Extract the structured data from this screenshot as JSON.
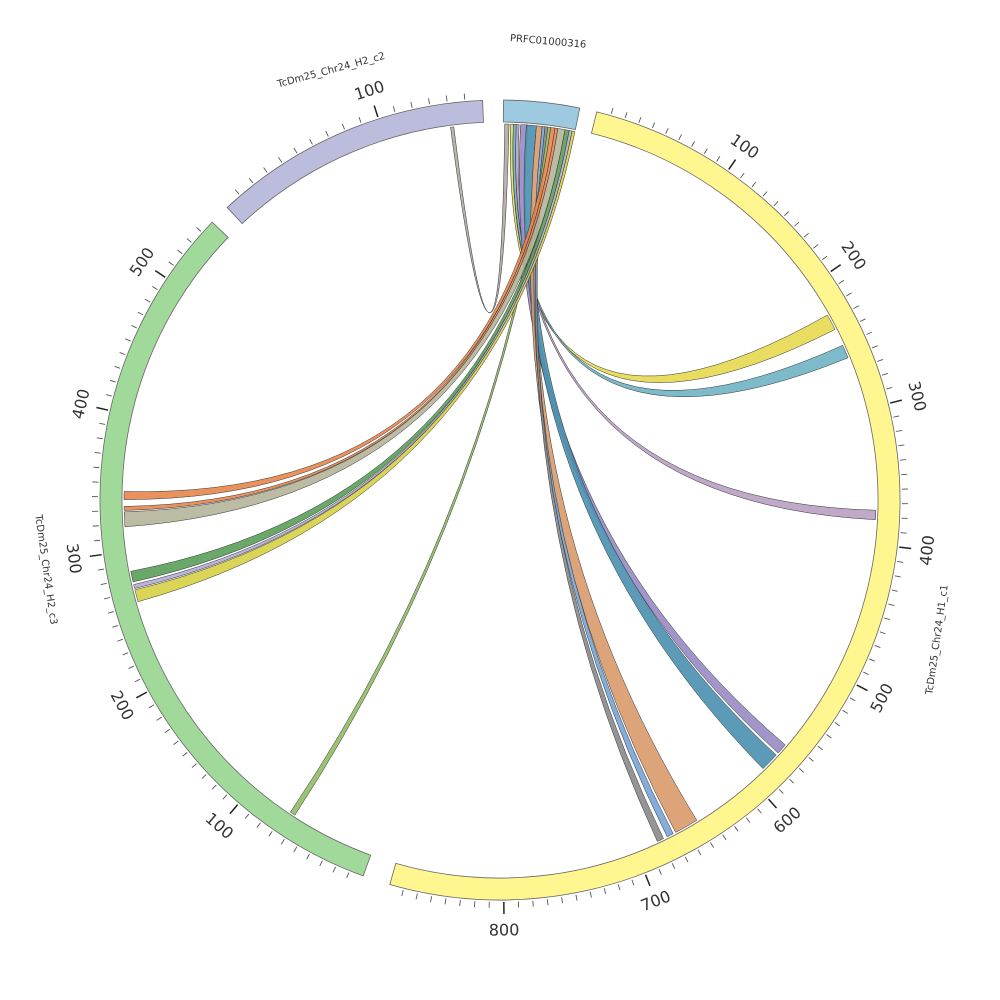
{
  "diagram": {
    "type": "circos",
    "segments": [
      {
        "id": "PRFC01000316",
        "label": "PRFC01000316",
        "length": 50,
        "color": "#9ecae1",
        "tick_labels": []
      },
      {
        "id": "c1",
        "label": "TcDm25_Chr24_H1_c1",
        "length": 880,
        "color": "#fff68f",
        "tick_labels": [
          "100",
          "200",
          "300",
          "400",
          "500",
          "600",
          "700",
          "800"
        ]
      },
      {
        "id": "c3",
        "label": "TcDm25_Chr24_H2_c3",
        "length": 550,
        "color": "#a1d99b",
        "tick_labels": [
          "100",
          "200",
          "300",
          "400",
          "500"
        ]
      },
      {
        "id": "c2",
        "label": "TcDm25_Chr24_H2_c2",
        "length": 160,
        "color": "#bcbddc",
        "tick_labels": [
          "100"
        ]
      }
    ],
    "links": [
      {
        "s": [
          1,
          4
        ],
        "t": [
          "c2",
          140,
          142
        ],
        "color": "#b0aca4"
      },
      {
        "s": [
          5,
          7
        ],
        "t": [
          "c1",
          225,
          237
        ],
        "color": "#e6d850"
      },
      {
        "s": [
          7,
          9
        ],
        "t": [
          "c1",
          250,
          260
        ],
        "color": "#6fb3c4"
      },
      {
        "s": [
          9,
          11
        ],
        "t": [
          "c1",
          375,
          382
        ],
        "color": "#b99ec2"
      },
      {
        "s": [
          12,
          17
        ],
        "t": [
          "c1",
          564,
          572
        ],
        "color": "#9889c4"
      },
      {
        "s": [
          16,
          23
        ],
        "t": [
          "c1",
          574,
          588
        ],
        "color": "#4a90b0"
      },
      {
        "s": [
          23,
          27
        ],
        "t": [
          "c1",
          650,
          668
        ],
        "color": "#d99a6a"
      },
      {
        "s": [
          27,
          29
        ],
        "t": [
          "c1",
          670,
          675
        ],
        "color": "#75a4d6"
      },
      {
        "s": [
          29,
          31
        ],
        "t": [
          "c1",
          678,
          683
        ],
        "color": "#8a8a8a"
      },
      {
        "s": [
          31,
          33
        ],
        "t": [
          "c3",
          63,
          67
        ],
        "color": "#8fbc63"
      },
      {
        "s": [
          33,
          36
        ],
        "t": [
          "c3",
          338,
          344
        ],
        "color": "#e8864d"
      },
      {
        "s": [
          36,
          38
        ],
        "t": [
          "c3",
          330,
          333
        ],
        "color": "#e8864d"
      },
      {
        "s": [
          38,
          43
        ],
        "t": [
          "c3",
          318,
          329
        ],
        "color": "#b5b49a"
      },
      {
        "s": [
          43,
          46
        ],
        "t": [
          "c3",
          277,
          285
        ],
        "color": "#5a9e5a"
      },
      {
        "s": [
          46,
          48
        ],
        "t": [
          "c3",
          272,
          275
        ],
        "color": "#b2add4"
      },
      {
        "s": [
          48,
          50
        ],
        "t": [
          "c3",
          262,
          271
        ],
        "color": "#d6cf45"
      }
    ]
  }
}
